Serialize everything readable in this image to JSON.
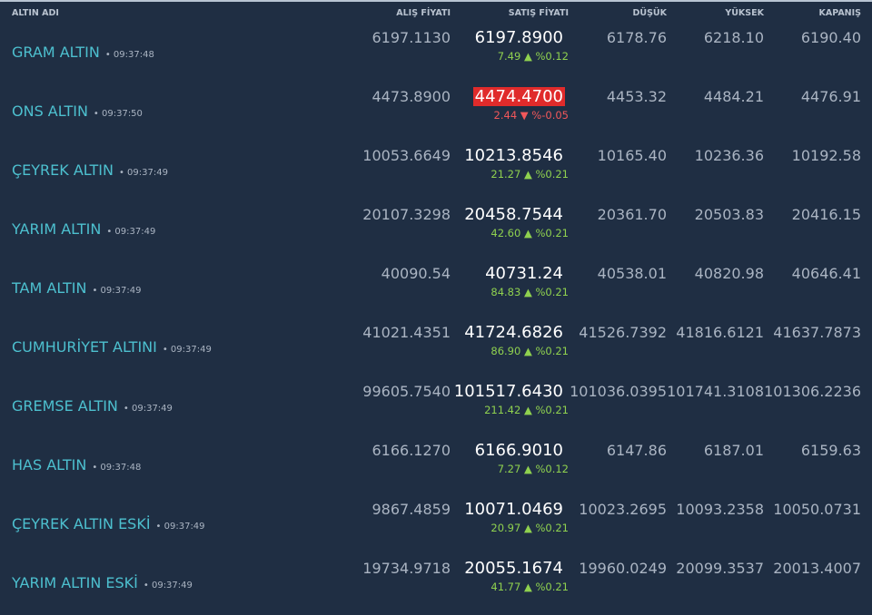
{
  "headers": [
    "ALTIN ADI",
    "ALIŞ FİYATI",
    "SATIŞ FİYATI",
    "DÜŞÜK",
    "YÜKSEK",
    "KAPANIŞ"
  ],
  "colors": {
    "up": "#8fd14f",
    "down": "#f0575a",
    "down_bg": "#e02b2b",
    "name": "#4dc0cf"
  },
  "rows": [
    {
      "name": "GRAM ALTIN",
      "time": "• 09:37:48",
      "alis": "6197.1130",
      "satis": "6197.8900",
      "change": "7.49 ▲ %0.12",
      "dir": "up",
      "dusuk": "6178.76",
      "yuksek": "6218.10",
      "kapanis": "6190.40"
    },
    {
      "name": "ONS ALTIN",
      "time": "• 09:37:50",
      "alis": "4473.8900",
      "satis": "4474.4700",
      "change": "2.44 ▼ %-0.05",
      "dir": "down",
      "dusuk": "4453.32",
      "yuksek": "4484.21",
      "kapanis": "4476.91"
    },
    {
      "name": "ÇEYREK ALTIN",
      "time": "• 09:37:49",
      "alis": "10053.6649",
      "satis": "10213.8546",
      "change": "21.27 ▲ %0.21",
      "dir": "up",
      "dusuk": "10165.40",
      "yuksek": "10236.36",
      "kapanis": "10192.58"
    },
    {
      "name": "YARIM ALTIN",
      "time": "• 09:37:49",
      "alis": "20107.3298",
      "satis": "20458.7544",
      "change": "42.60 ▲ %0.21",
      "dir": "up",
      "dusuk": "20361.70",
      "yuksek": "20503.83",
      "kapanis": "20416.15"
    },
    {
      "name": "TAM ALTIN",
      "time": "• 09:37:49",
      "alis": "40090.54",
      "satis": "40731.24",
      "change": "84.83 ▲ %0.21",
      "dir": "up",
      "dusuk": "40538.01",
      "yuksek": "40820.98",
      "kapanis": "40646.41"
    },
    {
      "name": "CUMHURİYET ALTINI",
      "time": "• 09:37:49",
      "alis": "41021.4351",
      "satis": "41724.6826",
      "change": "86.90 ▲ %0.21",
      "dir": "up",
      "dusuk": "41526.7392",
      "yuksek": "41816.6121",
      "kapanis": "41637.7873"
    },
    {
      "name": "GREMSE ALTIN",
      "time": "• 09:37:49",
      "alis": "99605.7540",
      "satis": "101517.6430",
      "change": "211.42 ▲ %0.21",
      "dir": "up",
      "dusuk": "101036.0395",
      "yuksek": "101741.3108",
      "kapanis": "101306.2236"
    },
    {
      "name": "HAS ALTIN",
      "time": "• 09:37:48",
      "alis": "6166.1270",
      "satis": "6166.9010",
      "change": "7.27 ▲ %0.12",
      "dir": "up",
      "dusuk": "6147.86",
      "yuksek": "6187.01",
      "kapanis": "6159.63"
    },
    {
      "name": "ÇEYREK ALTIN ESKİ",
      "time": "• 09:37:49",
      "alis": "9867.4859",
      "satis": "10071.0469",
      "change": "20.97 ▲ %0.21",
      "dir": "up",
      "dusuk": "10023.2695",
      "yuksek": "10093.2358",
      "kapanis": "10050.0731"
    },
    {
      "name": "YARIM ALTIN ESKİ",
      "time": "• 09:37:49",
      "alis": "19734.9718",
      "satis": "20055.1674",
      "change": "41.77 ▲ %0.21",
      "dir": "up",
      "dusuk": "19960.0249",
      "yuksek": "20099.3537",
      "kapanis": "20013.4007"
    }
  ]
}
